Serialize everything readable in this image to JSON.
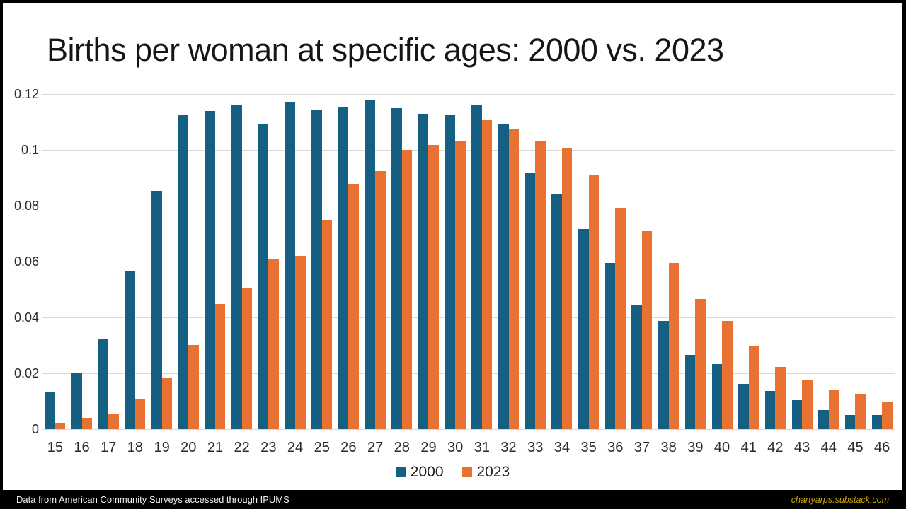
{
  "title": "Births per woman at specific ages: 2000 vs. 2023",
  "footer": {
    "source_note": "Data from American Community Surveys accessed through IPUMS",
    "site": "chartyarps.substack.com"
  },
  "colors": {
    "series_2000": "#156082",
    "series_2023": "#E97132",
    "gridline": "#D9D9D9",
    "background": "#FFFFFF",
    "frame": "#000000",
    "footer_site_text": "#C9A400"
  },
  "chart_data": {
    "type": "bar",
    "title": "Births per woman at specific ages: 2000 vs. 2023",
    "xlabel": "",
    "ylabel": "",
    "categories": [
      15,
      16,
      17,
      18,
      19,
      20,
      21,
      22,
      23,
      24,
      25,
      26,
      27,
      28,
      29,
      30,
      31,
      32,
      33,
      34,
      35,
      36,
      37,
      38,
      39,
      40,
      41,
      42,
      43,
      44,
      45,
      46
    ],
    "series": [
      {
        "name": "2000",
        "color": "#156082",
        "values": [
          0.0135,
          0.0202,
          0.0324,
          0.0568,
          0.0852,
          0.1126,
          0.1139,
          0.116,
          0.1094,
          0.1173,
          0.1143,
          0.1153,
          0.1179,
          0.1149,
          0.113,
          0.1123,
          0.116,
          0.1094,
          0.0916,
          0.0843,
          0.0716,
          0.0595,
          0.0442,
          0.0388,
          0.0265,
          0.0233,
          0.0163,
          0.0138,
          0.0104,
          0.0068,
          0.0051,
          0.0051
        ]
      },
      {
        "name": "2023",
        "color": "#E97132",
        "values": [
          0.0021,
          0.004,
          0.0053,
          0.011,
          0.0183,
          0.0301,
          0.0449,
          0.0504,
          0.0611,
          0.062,
          0.0749,
          0.0878,
          0.0925,
          0.1,
          0.1017,
          0.1033,
          0.1107,
          0.1075,
          0.1032,
          0.1006,
          0.0911,
          0.0793,
          0.0709,
          0.0595,
          0.0466,
          0.0387,
          0.0295,
          0.0224,
          0.0178,
          0.0141,
          0.0123,
          0.0097
        ]
      }
    ],
    "ylim": [
      0,
      0.12
    ],
    "ytick_values": [
      0,
      0.02,
      0.04,
      0.06,
      0.08,
      0.1,
      0.12
    ],
    "ytick_labels": [
      "0",
      "0.02",
      "0.04",
      "0.06",
      "0.08",
      "0.1",
      "0.12"
    ],
    "grid": "horizontal",
    "legend_position": "bottom-center"
  }
}
